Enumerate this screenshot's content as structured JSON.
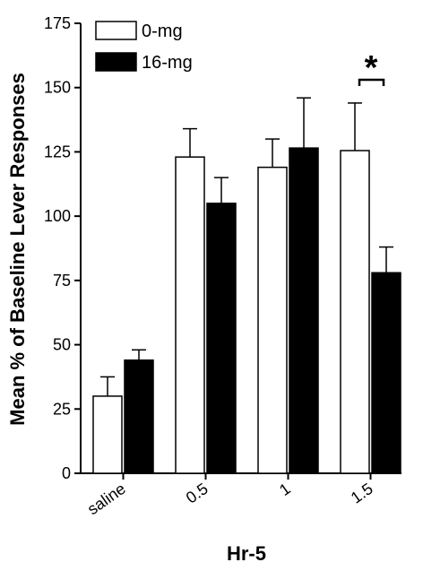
{
  "chart_data": {
    "type": "bar",
    "xlabel": "Hr-5",
    "ylabel": "Mean % of Baseline Lever Responses",
    "categories": [
      "saline",
      "0.5",
      "1",
      "1.5"
    ],
    "ylim": [
      0,
      175
    ],
    "yticks": [
      "0",
      "25",
      "50",
      "75",
      "100",
      "125",
      "150",
      "175"
    ],
    "grid": false,
    "legend_position": "top-left",
    "series": [
      {
        "name": "0-mg",
        "color": "#ffffff",
        "values": [
          30,
          123,
          119,
          125.5
        ],
        "errors": [
          7.5,
          11,
          11,
          18.5
        ]
      },
      {
        "name": "16-mg",
        "color": "#000000",
        "values": [
          44,
          105,
          126.5,
          78
        ],
        "errors": [
          4,
          10,
          19.5,
          10
        ]
      }
    ],
    "annotations": [
      {
        "text": "*",
        "category": "1.5"
      }
    ]
  }
}
